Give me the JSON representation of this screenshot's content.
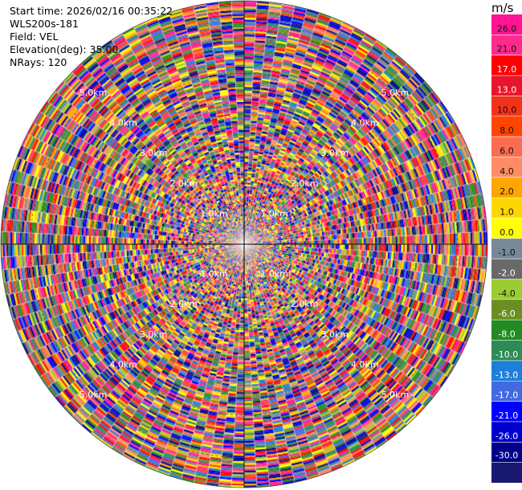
{
  "header": {
    "start_time": "Start time: 2026/02/16 00:35:22",
    "instrument": "WLS200s-181",
    "field": "Field: VEL",
    "elevation": "Elevation(deg): 35.00",
    "nrays": "NRays: 120"
  },
  "chart_data": {
    "type": "heatmap",
    "projection": "polar-ppi",
    "field": "VEL",
    "elevation_deg": 35.0,
    "n_rays": 120,
    "range_rings_km": [
      1.0,
      2.0,
      3.0,
      4.0,
      5.0
    ],
    "range_ring_labels": [
      "1.0km",
      "2.0km",
      "3.0km",
      "4.0km",
      "5.0km"
    ],
    "max_range_km": 5.7,
    "colorbar": {
      "unit": "m/s",
      "ticks": [
        "26.0",
        "21.0",
        "17.0",
        "13.0",
        "10.0",
        "8.0",
        "6.0",
        "4.0",
        "2.0",
        "1.0",
        "0.0",
        "-1.0",
        "-2.0",
        "-4.0",
        "-6.0",
        "-8.0",
        "-10.0",
        "-13.0",
        "-17.0",
        "-21.0",
        "-26.0",
        "-30.0"
      ],
      "colors": [
        "#ff1493",
        "#ff2a8c",
        "#ff0000",
        "#e8162c",
        "#f2331c",
        "#ff4500",
        "#fa6d52",
        "#ff8c64",
        "#ffa500",
        "#ffd700",
        "#ffff00",
        "#778899",
        "#696969",
        "#9acd32",
        "#6b8e23",
        "#228b22",
        "#2e8b57",
        "#1e7fd8",
        "#4169e1",
        "#0000ff",
        "#0000cd",
        "#00008b",
        "#191970"
      ]
    },
    "palette": [
      "#ff1493",
      "#ff0000",
      "#e8162c",
      "#ff4500",
      "#fa6d52",
      "#ff8c64",
      "#ffa500",
      "#ffd700",
      "#ffff00",
      "#778899",
      "#696969",
      "#9acd32",
      "#6b8e23",
      "#228b22",
      "#2e8b57",
      "#1e7fd8",
      "#4169e1",
      "#0000ff",
      "#0000cd",
      "#00008b",
      "#191970",
      "#ff2a8c"
    ]
  }
}
